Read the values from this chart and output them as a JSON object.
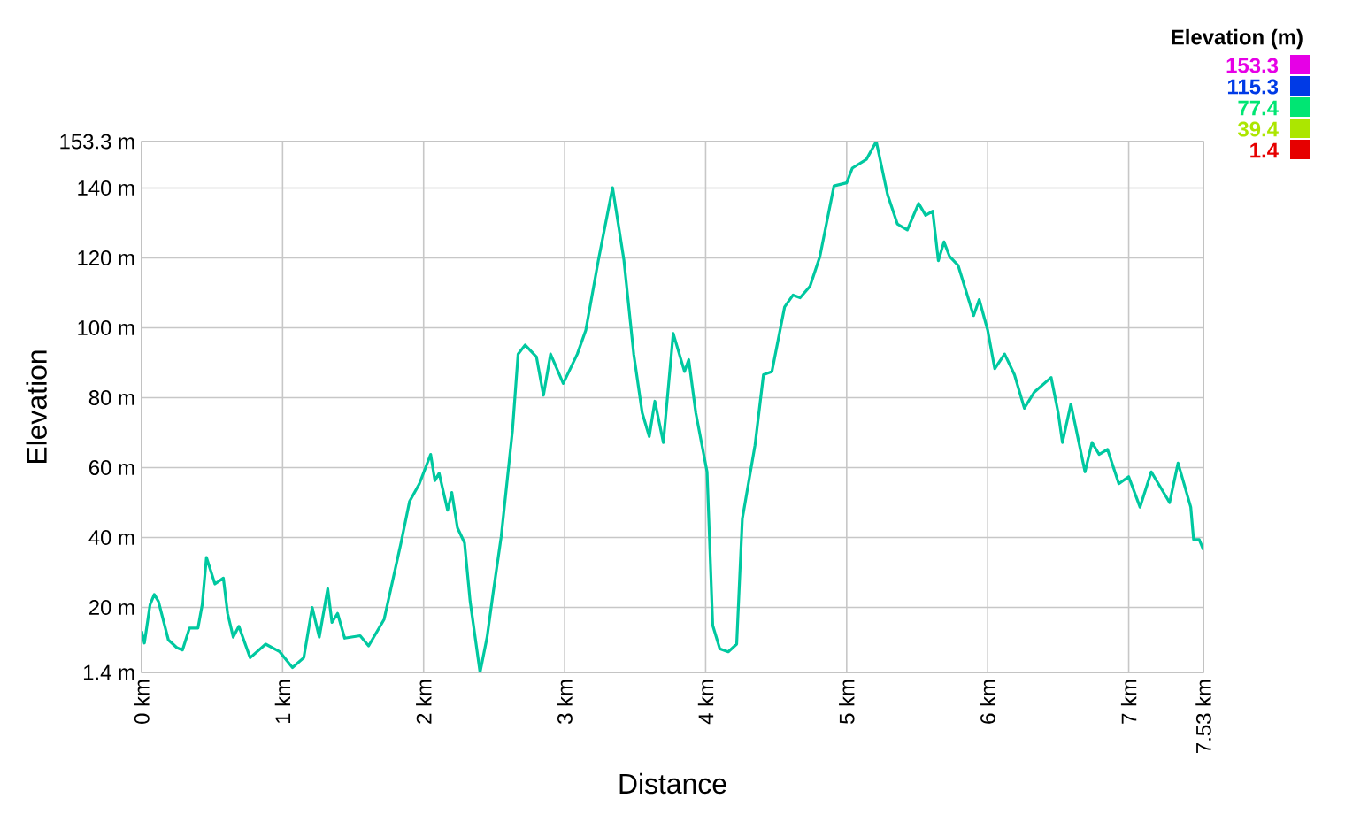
{
  "chart_data": {
    "type": "line",
    "xlabel": "Distance",
    "ylabel": "Elevation",
    "clabel": "Elevation (m)",
    "cticks": [
      153.3,
      115.3,
      77.4,
      39.4,
      1.4
    ],
    "xlim": [
      0,
      7.53
    ],
    "xticks": [
      {
        "value": 0,
        "label": "0 km"
      },
      {
        "value": 1,
        "label": "1 km"
      },
      {
        "value": 2,
        "label": "2 km"
      },
      {
        "value": 3,
        "label": "3 km"
      },
      {
        "value": 4,
        "label": "4 km"
      },
      {
        "value": 5,
        "label": "5 km"
      },
      {
        "value": 6,
        "label": "6 km"
      },
      {
        "value": 7,
        "label": "7 km"
      },
      {
        "value": 7.53,
        "label": "7.53 km"
      }
    ],
    "ylim": [
      1.4,
      153.3
    ],
    "yticks": [
      {
        "value": 1.4,
        "label": "1.4 m"
      },
      {
        "value": 20,
        "label": "20 m"
      },
      {
        "value": 40,
        "label": "40 m"
      },
      {
        "value": 60,
        "label": "60 m"
      },
      {
        "value": 80,
        "label": "80 m"
      },
      {
        "value": 100,
        "label": "100 m"
      },
      {
        "value": 120,
        "label": "120 m"
      },
      {
        "value": 140,
        "label": "140 m"
      },
      {
        "value": 153.3,
        "label": "153.3 m"
      }
    ],
    "grid": true,
    "color": "#00c8a0",
    "x": [
      0,
      0.02,
      0.06,
      0.09,
      0.12,
      0.19,
      0.25,
      0.29,
      0.34,
      0.4,
      0.43,
      0.46,
      0.52,
      0.58,
      0.61,
      0.65,
      0.69,
      0.77,
      0.88,
      0.98,
      1.07,
      1.15,
      1.21,
      1.26,
      1.32,
      1.35,
      1.39,
      1.44,
      1.55,
      1.61,
      1.72,
      1.84,
      1.9,
      1.97,
      2.05,
      2.08,
      2.11,
      2.17,
      2.2,
      2.24,
      2.29,
      2.33,
      2.4,
      2.45,
      2.49,
      2.55,
      2.63,
      2.67,
      2.72,
      2.8,
      2.85,
      2.9,
      2.99,
      3.09,
      3.15,
      3.24,
      3.34,
      3.42,
      3.49,
      3.55,
      3.6,
      3.64,
      3.7,
      3.77,
      3.85,
      3.88,
      3.93,
      4.01,
      4.05,
      4.1,
      4.16,
      4.22,
      4.26,
      4.35,
      4.41,
      4.47,
      4.56,
      4.62,
      4.67,
      4.74,
      4.81,
      4.91,
      5.0,
      5.04,
      5.14,
      5.21,
      5.29,
      5.36,
      5.43,
      5.51,
      5.56,
      5.61,
      5.65,
      5.69,
      5.73,
      5.79,
      5.9,
      5.94,
      6.0,
      6.05,
      6.12,
      6.19,
      6.26,
      6.33,
      6.45,
      6.5,
      6.53,
      6.59,
      6.69,
      6.74,
      6.79,
      6.85,
      6.93,
      7.0,
      7.08,
      7.16,
      7.29,
      7.35,
      7.44,
      7.46,
      7.5,
      7.53
    ],
    "values": [
      13.2,
      9.8,
      20.8,
      23.7,
      21.7,
      10.7,
      8.5,
      7.8,
      14.1,
      14.1,
      20.8,
      34.3,
      26.7,
      28.4,
      18.3,
      11.5,
      14.6,
      5.6,
      9.5,
      7.3,
      2.8,
      5.6,
      20.0,
      11.5,
      25.4,
      15.7,
      18.3,
      11.2,
      11.9,
      9.0,
      16.6,
      38.5,
      50.3,
      55.4,
      63.8,
      56.3,
      58.4,
      47.8,
      52.9,
      42.8,
      38.5,
      21.7,
      1.4,
      11.5,
      23.3,
      40.2,
      70.6,
      92.5,
      95.1,
      91.7,
      80.7,
      92.5,
      84.1,
      92.5,
      99.3,
      119.5,
      140.1,
      119.5,
      92.5,
      75.7,
      68.9,
      79.0,
      67.2,
      98.4,
      87.5,
      90.9,
      75.7,
      58.8,
      14.9,
      8.2,
      7.3,
      9.5,
      45.3,
      66.4,
      86.6,
      87.5,
      106.0,
      109.4,
      108.6,
      111.9,
      120.4,
      140.6,
      141.5,
      145.7,
      148.2,
      153.3,
      138.1,
      129.7,
      128.0,
      135.6,
      132.2,
      133.4,
      119.2,
      124.6,
      120.4,
      117.9,
      103.5,
      108.1,
      99.3,
      88.3,
      92.5,
      86.6,
      77.0,
      81.6,
      85.8,
      75.7,
      67.2,
      78.2,
      58.8,
      67.2,
      63.8,
      65.2,
      55.4,
      57.4,
      48.7,
      58.8,
      50.0,
      61.3,
      48.7,
      39.4,
      39.4,
      36.5
    ]
  }
}
